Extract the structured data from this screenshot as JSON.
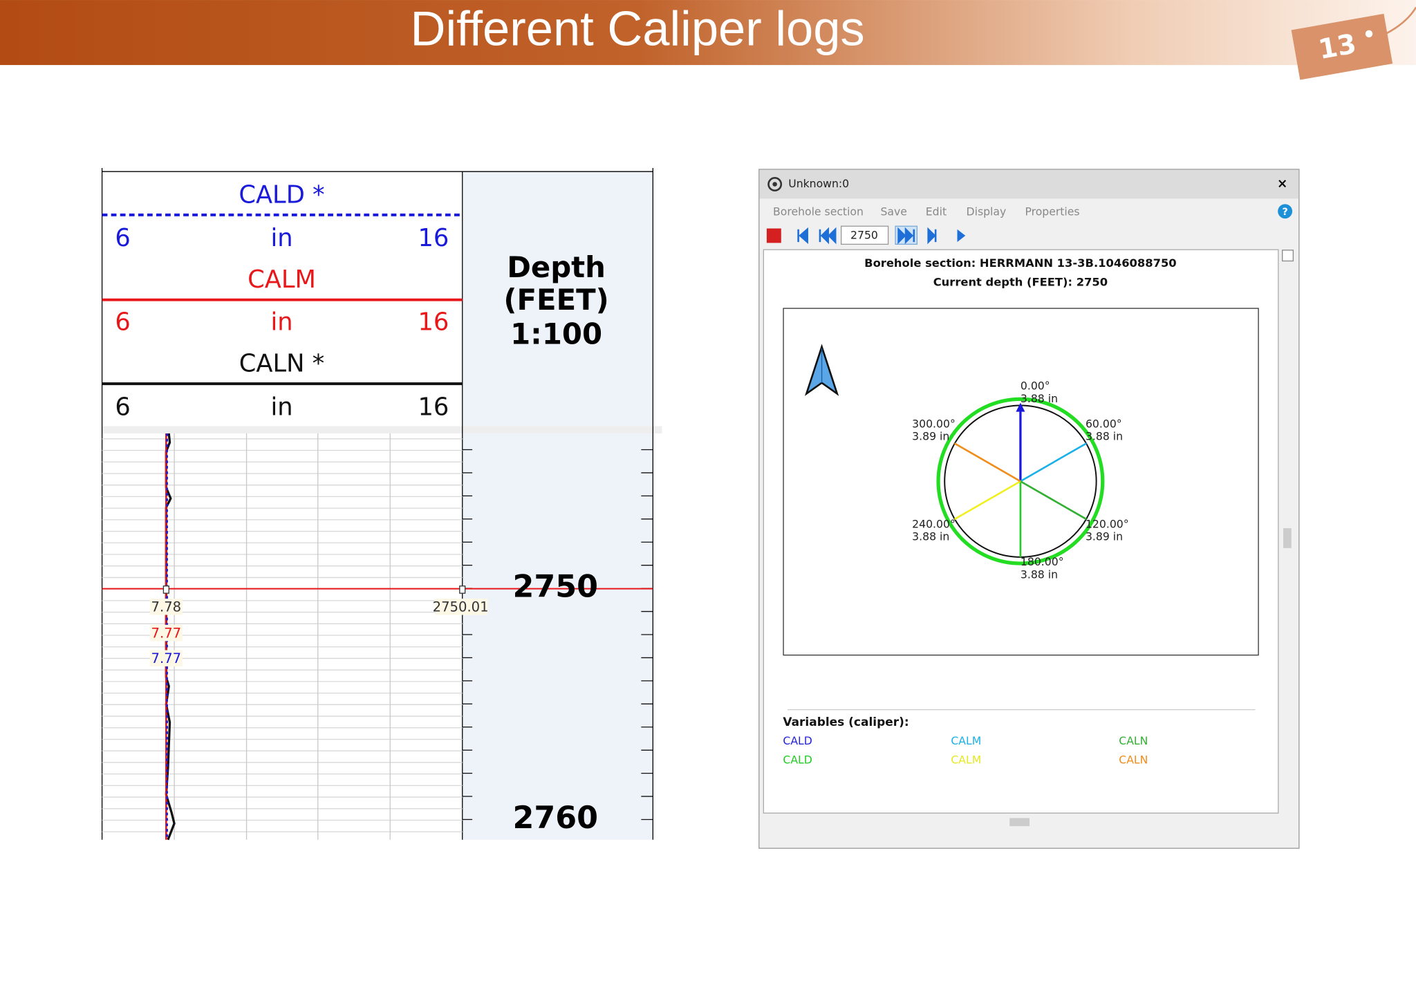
{
  "slide": {
    "title": "Different Caliper logs",
    "page_number": "13"
  },
  "log_header": {
    "tracks": [
      {
        "name": "CALD *",
        "min": "6",
        "unit": "in",
        "max": "16"
      },
      {
        "name": "CALM",
        "min": "6",
        "unit": "in",
        "max": "16"
      },
      {
        "name": "CALN *",
        "min": "6",
        "unit": "in",
        "max": "16"
      }
    ],
    "depth_label": [
      "Depth",
      "(FEET)",
      "1:100"
    ]
  },
  "log_body": {
    "depths": [
      "2750",
      "2760"
    ],
    "readouts": [
      "7.78",
      "7.77",
      "7.77"
    ],
    "depth_readout": "2750.01"
  },
  "window": {
    "title": "Unknown:0",
    "close": "×",
    "menu": [
      "Borehole section",
      "Save",
      "Edit",
      "Display",
      "Properties"
    ],
    "help": "?",
    "depth_input": "2750",
    "heading": "Borehole section: HERRMANN 13-3B.1046088750",
    "current_depth": "Current depth (FEET): 2750",
    "arms": [
      {
        "angle": "0.00°",
        "radius": "3.88 in"
      },
      {
        "angle": "60.00°",
        "radius": "3.88 in"
      },
      {
        "angle": "120.00°",
        "radius": "3.89 in"
      },
      {
        "angle": "180.00°",
        "radius": "3.88 in"
      },
      {
        "angle": "240.00°",
        "radius": "3.88 in"
      },
      {
        "angle": "300.00°",
        "radius": "3.89 in"
      }
    ],
    "variables_title": "Variables (caliper):",
    "variables": [
      "CALD",
      "CALM",
      "CALN",
      "CALD",
      "CALM",
      "CALN"
    ]
  }
}
